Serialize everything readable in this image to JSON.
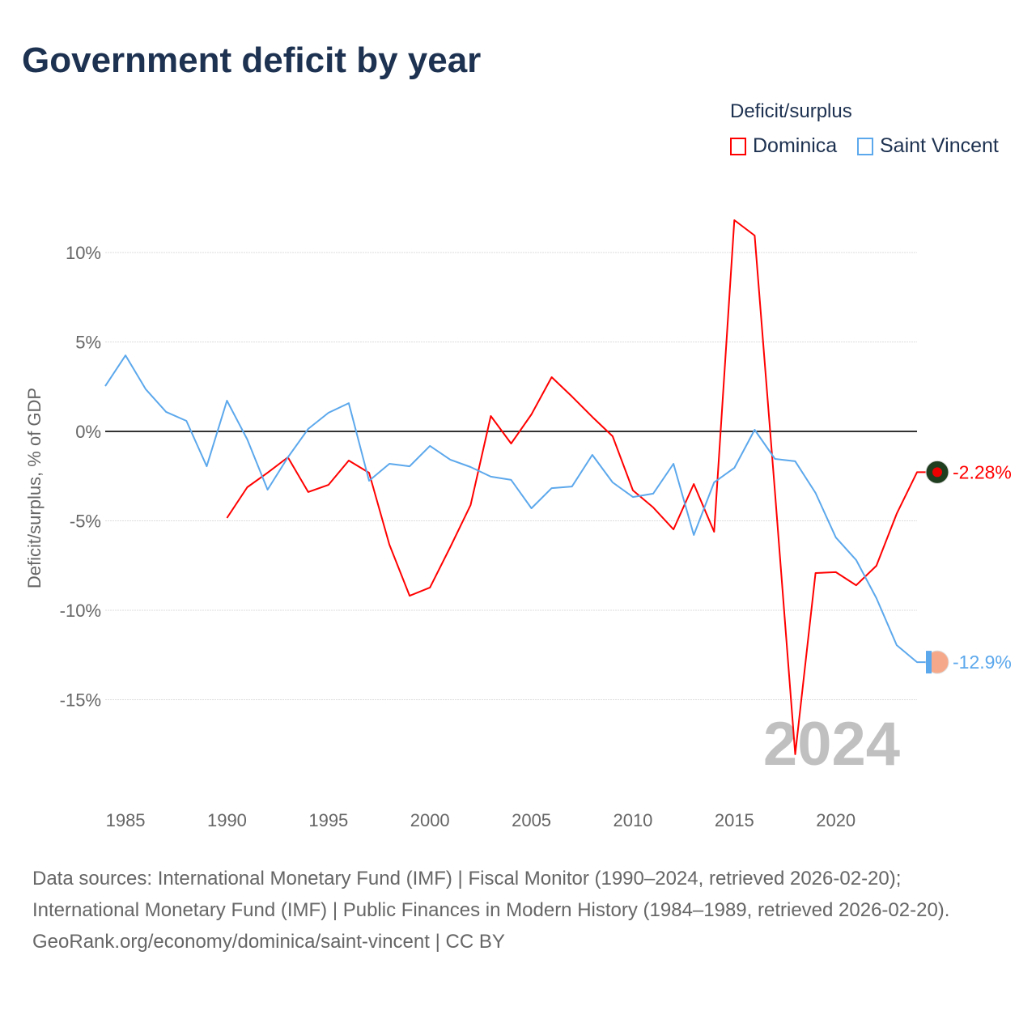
{
  "title": "Government deficit by year",
  "legend": {
    "title": "Deficit/surplus",
    "items": [
      {
        "label": "Dominica",
        "color": "#ff0000"
      },
      {
        "label": "Saint Vincent",
        "color": "#5ca8ec"
      }
    ]
  },
  "year_watermark": "2024",
  "chart_data": {
    "type": "line",
    "title": "Government deficit by year",
    "xlabel": "",
    "ylabel": "Deficit/surplus, % of GDP",
    "xlim": [
      1984,
      2024
    ],
    "ylim": [
      -20,
      12.5
    ],
    "x_ticks": [
      1985,
      1990,
      1995,
      2000,
      2005,
      2010,
      2015,
      2020
    ],
    "y_ticks": [
      {
        "v": 10,
        "label": "10%"
      },
      {
        "v": 5,
        "label": "5%"
      },
      {
        "v": 0,
        "label": "0%"
      },
      {
        "v": -5,
        "label": "-5%"
      },
      {
        "v": -10,
        "label": "-10%"
      },
      {
        "v": -15,
        "label": "-15%"
      }
    ],
    "legend_position": "top-right",
    "series": [
      {
        "name": "Dominica",
        "color": "#ff0000",
        "end_label": "-2.28%",
        "start": 1990,
        "values": [
          -4.84,
          -3.12,
          -2.31,
          -1.45,
          -3.39,
          -2.99,
          -1.63,
          -2.31,
          -6.33,
          -9.19,
          -8.73,
          -6.47,
          -4.12,
          0.86,
          -0.68,
          0.95,
          3.03,
          1.95,
          0.81,
          -0.27,
          -3.3,
          -4.25,
          -5.48,
          -2.94,
          -5.61,
          11.81,
          10.95,
          -3.4,
          -18.05,
          -7.92,
          -7.87,
          -8.6,
          -7.51,
          -4.6,
          -2.28
        ]
      },
      {
        "name": "Saint Vincent",
        "color": "#5ca8ec",
        "end_label": "-12.9%",
        "start": 1984,
        "values": [
          2.53,
          4.25,
          2.35,
          1.09,
          0.59,
          -1.95,
          1.72,
          -0.45,
          -3.26,
          -1.45,
          0.14,
          1.04,
          1.58,
          -2.76,
          -1.81,
          -1.95,
          -0.81,
          -1.58,
          -1.99,
          -2.53,
          -2.71,
          -4.3,
          -3.17,
          -3.08,
          -1.31,
          -2.85,
          -3.67,
          -3.48,
          -1.81,
          -5.79,
          -2.85,
          -2.04,
          0.09,
          -1.54,
          -1.67,
          -3.44,
          -5.93,
          -7.19,
          -9.32,
          -11.95,
          -12.9
        ]
      }
    ]
  },
  "footer": {
    "sources": "Data sources: International Monetary Fund (IMF) | Fiscal Monitor (1990–2024, retrieved 2026-02-20); International Monetary Fund (IMF) | Public Finances in Modern History (1984–1989, retrieved 2026-02-20).",
    "credit": "GeoRank.org/economy/dominica/saint-vincent | CC BY"
  }
}
